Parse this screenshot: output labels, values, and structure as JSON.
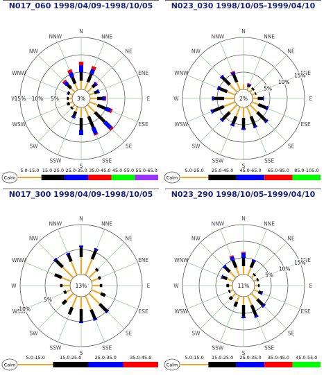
{
  "chart_data": [
    {
      "type": "windrose",
      "title": "N017_060 1998/04/09-1998/10/05",
      "directions": [
        "N",
        "NNE",
        "NE",
        "ENE",
        "E",
        "ESE",
        "SE",
        "SSE",
        "S",
        "SSW",
        "SW",
        "WSW",
        "W",
        "WNW",
        "NW",
        "NNW"
      ],
      "rings_percent": [
        5,
        10,
        15
      ],
      "ring_labels_on": "W",
      "calm_label": "Calm",
      "calm_percent": "3%",
      "bins": [
        "5.0-15.0",
        "15.0-25.0",
        "25.0-35.0",
        "35.0-45.0",
        "45.0-55.0",
        "55.0-65.0"
      ],
      "colors": [
        "#f5a623",
        "#000000",
        "#0000ff",
        "#ff0000",
        "#00ff00",
        "#9933ff"
      ],
      "ring_max": 15,
      "frequencies": [
        [
          2.5,
          2.5,
          2.0,
          1.0,
          0.0,
          0.0
        ],
        [
          2.5,
          2.5,
          1.5,
          0.8,
          0.0,
          0.0
        ],
        [
          2.0,
          1.0,
          0.5,
          0.2,
          0.0,
          0.0
        ],
        [
          1.5,
          1.0,
          0.5,
          0.0,
          0.0,
          0.0
        ],
        [
          2.0,
          1.5,
          0.8,
          0.3,
          0.0,
          0.0
        ],
        [
          2.5,
          2.5,
          1.5,
          0.5,
          0.0,
          0.0
        ],
        [
          3.0,
          4.0,
          2.5,
          0.5,
          0.0,
          0.0
        ],
        [
          3.0,
          3.5,
          2.0,
          0.3,
          0.0,
          0.0
        ],
        [
          3.0,
          3.5,
          1.5,
          0.0,
          0.0,
          0.0
        ],
        [
          1.5,
          1.5,
          0.5,
          0.0,
          0.0,
          0.0
        ],
        [
          1.0,
          0.5,
          0.0,
          0.0,
          0.0,
          0.0
        ],
        [
          1.0,
          0.8,
          0.0,
          0.0,
          0.0,
          0.0
        ],
        [
          1.0,
          0.5,
          0.0,
          0.0,
          0.0,
          0.0
        ],
        [
          1.0,
          0.5,
          0.2,
          0.0,
          0.0,
          0.0
        ],
        [
          1.5,
          1.5,
          1.0,
          0.5,
          0.0,
          0.0
        ],
        [
          2.0,
          2.0,
          1.5,
          0.8,
          0.0,
          0.0
        ]
      ]
    },
    {
      "type": "windrose",
      "title": "N023_030 1998/10/05-1999/04/10",
      "directions": [
        "N",
        "NNE",
        "NE",
        "ENE",
        "E",
        "ESE",
        "SE",
        "SSE",
        "S",
        "SSW",
        "SW",
        "WSW",
        "W",
        "WNW",
        "NW",
        "NNW"
      ],
      "rings_percent": [
        5,
        10,
        15
      ],
      "ring_labels_on": "ENE",
      "calm_label": "Calm",
      "calm_percent": "2%",
      "bins": [
        "5.0-25.0",
        "25.0-45.0",
        "45.0-65.0",
        "65.0-85.0",
        "85.0-105.0"
      ],
      "colors": [
        "#f5a623",
        "#000000",
        "#0000ff",
        "#ff0000",
        "#00ff00"
      ],
      "ring_max": 15,
      "frequencies": [
        [
          1.5,
          0.0,
          0.0,
          0.0,
          0.0
        ],
        [
          1.0,
          0.5,
          0.3,
          0.2,
          0.0
        ],
        [
          1.0,
          0.5,
          0.0,
          0.0,
          0.0
        ],
        [
          1.0,
          0.3,
          0.0,
          0.0,
          0.0
        ],
        [
          1.5,
          1.5,
          0.3,
          0.0,
          0.0
        ],
        [
          2.0,
          2.5,
          0.5,
          0.0,
          0.0
        ],
        [
          3.0,
          3.5,
          0.5,
          0.0,
          0.0
        ],
        [
          3.0,
          3.0,
          0.5,
          0.0,
          0.0
        ],
        [
          3.0,
          3.0,
          0.5,
          0.0,
          0.0
        ],
        [
          3.0,
          2.5,
          0.5,
          0.0,
          0.0
        ],
        [
          3.0,
          3.0,
          0.5,
          0.0,
          0.0
        ],
        [
          3.5,
          3.5,
          0.5,
          0.0,
          0.0
        ],
        [
          3.0,
          3.0,
          0.5,
          0.0,
          0.0
        ],
        [
          2.5,
          2.5,
          0.5,
          0.0,
          0.0
        ],
        [
          3.0,
          3.0,
          0.5,
          0.0,
          0.0
        ],
        [
          2.5,
          2.5,
          0.5,
          0.3,
          0.0
        ]
      ]
    },
    {
      "type": "windrose",
      "title": "N017_300 1998/04/09-1998/10/05",
      "directions": [
        "N",
        "NNE",
        "NE",
        "ENE",
        "E",
        "ESE",
        "SE",
        "SSE",
        "S",
        "SSW",
        "SW",
        "WSW",
        "W",
        "WNW",
        "NW",
        "NNW"
      ],
      "rings_percent": [
        5,
        10
      ],
      "ring_labels_on": "WSW",
      "calm_label": "Calm",
      "calm_percent": "13%",
      "bins": [
        "5.0-15.0",
        "15.0-25.0",
        "25.0-35.0",
        "35.0-45.0"
      ],
      "colors": [
        "#f5a623",
        "#000000",
        "#0000ff",
        "#ff0000"
      ],
      "ring_max": 10,
      "frequencies": [
        [
          3.5,
          2.0,
          0.3,
          0.0
        ],
        [
          3.5,
          2.0,
          0.3,
          0.0
        ],
        [
          2.0,
          0.5,
          0.0,
          0.0
        ],
        [
          1.5,
          0.5,
          0.0,
          0.0
        ],
        [
          1.5,
          0.5,
          0.0,
          0.0
        ],
        [
          2.0,
          1.0,
          0.0,
          0.0
        ],
        [
          3.0,
          2.0,
          0.3,
          0.0
        ],
        [
          3.0,
          2.0,
          0.3,
          0.0
        ],
        [
          2.5,
          2.5,
          0.3,
          0.0
        ],
        [
          2.5,
          1.5,
          0.0,
          0.0
        ],
        [
          2.0,
          1.0,
          0.0,
          0.0
        ],
        [
          1.0,
          0.5,
          0.0,
          0.0
        ],
        [
          1.5,
          0.5,
          0.0,
          0.0
        ],
        [
          2.0,
          1.5,
          0.0,
          0.0
        ],
        [
          3.0,
          2.0,
          0.3,
          0.0
        ],
        [
          3.0,
          1.5,
          0.3,
          0.0
        ]
      ]
    },
    {
      "type": "windrose",
      "title": "N023_290 1998/10/05-1999/04/10",
      "directions": [
        "N",
        "NNE",
        "NE",
        "ENE",
        "E",
        "ESE",
        "SE",
        "SSE",
        "S",
        "SSW",
        "SW",
        "WSW",
        "W",
        "WNW",
        "NW",
        "NNW"
      ],
      "rings_percent": [
        5,
        10,
        15
      ],
      "ring_labels_on": "ENE",
      "calm_label": "Calm",
      "calm_percent": "11%",
      "bins": [
        "5.0-15.0",
        "15.0-25.0",
        "25.0-35.0",
        "35.0-45.0",
        "45.0-55.0"
      ],
      "colors": [
        "#f5a623",
        "#000000",
        "#0000ff",
        "#ff0000",
        "#00ff00"
      ],
      "ring_max": 15,
      "frequencies": [
        [
          2.5,
          2.5,
          1.5,
          0.3,
          0.0
        ],
        [
          2.5,
          2.0,
          0.5,
          0.0,
          0.0
        ],
        [
          1.0,
          0.5,
          0.0,
          0.0,
          0.0
        ],
        [
          1.0,
          0.5,
          0.0,
          0.0,
          0.0
        ],
        [
          1.0,
          0.5,
          0.0,
          0.0,
          0.0
        ],
        [
          1.5,
          1.0,
          0.3,
          0.0,
          0.0
        ],
        [
          2.5,
          2.5,
          0.5,
          0.0,
          0.0
        ],
        [
          3.0,
          3.5,
          0.5,
          0.0,
          0.0
        ],
        [
          2.5,
          3.5,
          0.5,
          0.0,
          0.0
        ],
        [
          2.0,
          1.5,
          0.0,
          0.0,
          0.0
        ],
        [
          1.5,
          1.0,
          0.0,
          0.0,
          0.0
        ],
        [
          1.0,
          0.5,
          0.0,
          0.0,
          0.0
        ],
        [
          1.0,
          0.8,
          0.0,
          0.0,
          0.0
        ],
        [
          2.0,
          1.5,
          0.3,
          0.0,
          0.0
        ],
        [
          2.5,
          2.0,
          0.5,
          0.0,
          0.0
        ],
        [
          2.5,
          2.5,
          1.0,
          0.3,
          0.0
        ]
      ]
    }
  ]
}
